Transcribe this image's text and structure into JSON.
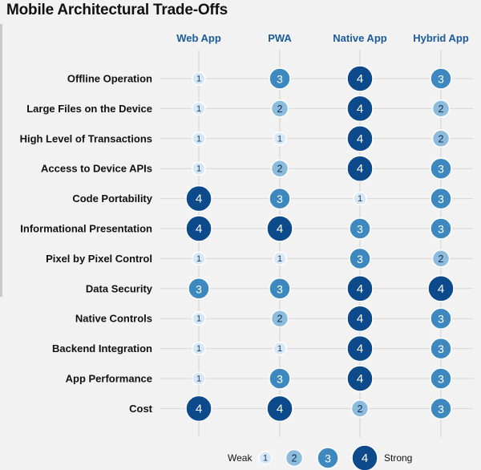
{
  "title": "Mobile Architectural Trade-Offs",
  "chart_data": {
    "type": "bubble-matrix",
    "columns": [
      "Web App",
      "PWA",
      "Native App",
      "Hybrid App"
    ],
    "rows": [
      "Offline Operation",
      "Large Files on the Device",
      "High Level of Transactions",
      "Access to Device APIs",
      "Code Portability",
      "Informational Presentation",
      "Pixel by Pixel Control",
      "Data Security",
      "Native Controls",
      "Backend Integration",
      "App Performance",
      "Cost"
    ],
    "values": [
      [
        1,
        3,
        4,
        3
      ],
      [
        1,
        2,
        4,
        2
      ],
      [
        1,
        1,
        4,
        2
      ],
      [
        1,
        2,
        4,
        3
      ],
      [
        4,
        3,
        1,
        3
      ],
      [
        4,
        4,
        3,
        3
      ],
      [
        1,
        1,
        3,
        2
      ],
      [
        3,
        3,
        4,
        4
      ],
      [
        1,
        2,
        4,
        3
      ],
      [
        1,
        1,
        4,
        3
      ],
      [
        1,
        3,
        4,
        3
      ],
      [
        4,
        4,
        2,
        3
      ]
    ],
    "scale_colors": {
      "1": "#d6e8f5",
      "2": "#8cbbdb",
      "3": "#3d89bf",
      "4": "#0d4a8c"
    },
    "legend": {
      "weak_label": "Weak",
      "strong_label": "Strong",
      "levels": [
        1,
        2,
        3,
        4
      ]
    },
    "grid": true
  }
}
